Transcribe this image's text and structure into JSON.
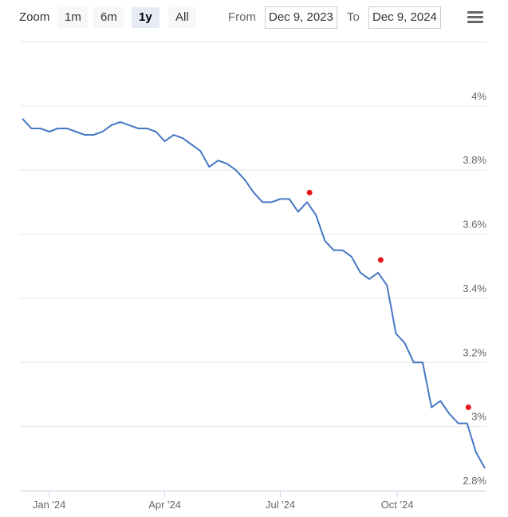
{
  "toolbar": {
    "zoom_label": "Zoom",
    "buttons": [
      "1m",
      "6m",
      "1y",
      "All"
    ],
    "selected": "1y",
    "from_label": "From",
    "from": "Dec 9, 2023",
    "to_label": "To",
    "to": "Dec 9, 2024"
  },
  "chart_data": {
    "type": "line",
    "x": [
      "2023-12-11",
      "2023-12-18",
      "2023-12-25",
      "2024-01-01",
      "2024-01-08",
      "2024-01-15",
      "2024-01-22",
      "2024-01-29",
      "2024-02-05",
      "2024-02-12",
      "2024-02-19",
      "2024-02-26",
      "2024-03-04",
      "2024-03-11",
      "2024-03-18",
      "2024-03-25",
      "2024-04-01",
      "2024-04-08",
      "2024-04-15",
      "2024-04-22",
      "2024-04-29",
      "2024-05-06",
      "2024-05-13",
      "2024-05-20",
      "2024-05-27",
      "2024-06-03",
      "2024-06-10",
      "2024-06-17",
      "2024-06-24",
      "2024-07-01",
      "2024-07-08",
      "2024-07-15",
      "2024-07-22",
      "2024-07-29",
      "2024-08-05",
      "2024-08-12",
      "2024-08-19",
      "2024-08-26",
      "2024-09-02",
      "2024-09-09",
      "2024-09-16",
      "2024-09-23",
      "2024-09-30",
      "2024-10-07",
      "2024-10-14",
      "2024-10-21",
      "2024-10-28",
      "2024-11-04",
      "2024-11-11",
      "2024-11-18",
      "2024-11-25",
      "2024-12-02",
      "2024-12-09"
    ],
    "series": [
      {
        "color": "#4477c4",
        "values": [
          3.96,
          3.93,
          3.93,
          3.92,
          3.93,
          3.93,
          3.92,
          3.91,
          3.91,
          3.92,
          3.94,
          3.95,
          3.94,
          3.93,
          3.93,
          3.92,
          3.89,
          3.91,
          3.9,
          3.88,
          3.86,
          3.81,
          3.83,
          3.82,
          3.8,
          3.77,
          3.73,
          3.7,
          3.7,
          3.71,
          3.71,
          3.67,
          3.7,
          3.66,
          3.58,
          3.55,
          3.55,
          3.53,
          3.48,
          3.46,
          3.48,
          3.44,
          3.29,
          3.26,
          3.2,
          3.2,
          3.06,
          3.08,
          3.04,
          3.01,
          3.01,
          2.92,
          2.87
        ]
      }
    ],
    "markers": {
      "color": "#e8141c",
      "x": [
        "2024-07-24",
        "2024-09-18",
        "2024-11-26"
      ],
      "values": [
        3.73,
        3.52,
        3.06
      ]
    },
    "xlim": [
      "2023-12-09",
      "2024-12-09"
    ],
    "xticks": [
      {
        "value": "2024-01-01",
        "label": "Jan '24"
      },
      {
        "value": "2024-04-01",
        "label": "Apr '24"
      },
      {
        "value": "2024-07-01",
        "label": "Jul '24"
      },
      {
        "value": "2024-10-01",
        "label": "Oct '24"
      }
    ],
    "ylim": [
      2.8,
      4.2
    ],
    "yticks": [
      {
        "value": 2.8,
        "label": "2.8%"
      },
      {
        "value": 3,
        "label": "3%"
      },
      {
        "value": 3.2,
        "label": "3.2%"
      },
      {
        "value": 3.4,
        "label": "3.4%"
      },
      {
        "value": 3.6,
        "label": "3.6%"
      },
      {
        "value": 3.8,
        "label": "3.8%"
      },
      {
        "value": 4,
        "label": "4%"
      }
    ],
    "grid": true
  }
}
